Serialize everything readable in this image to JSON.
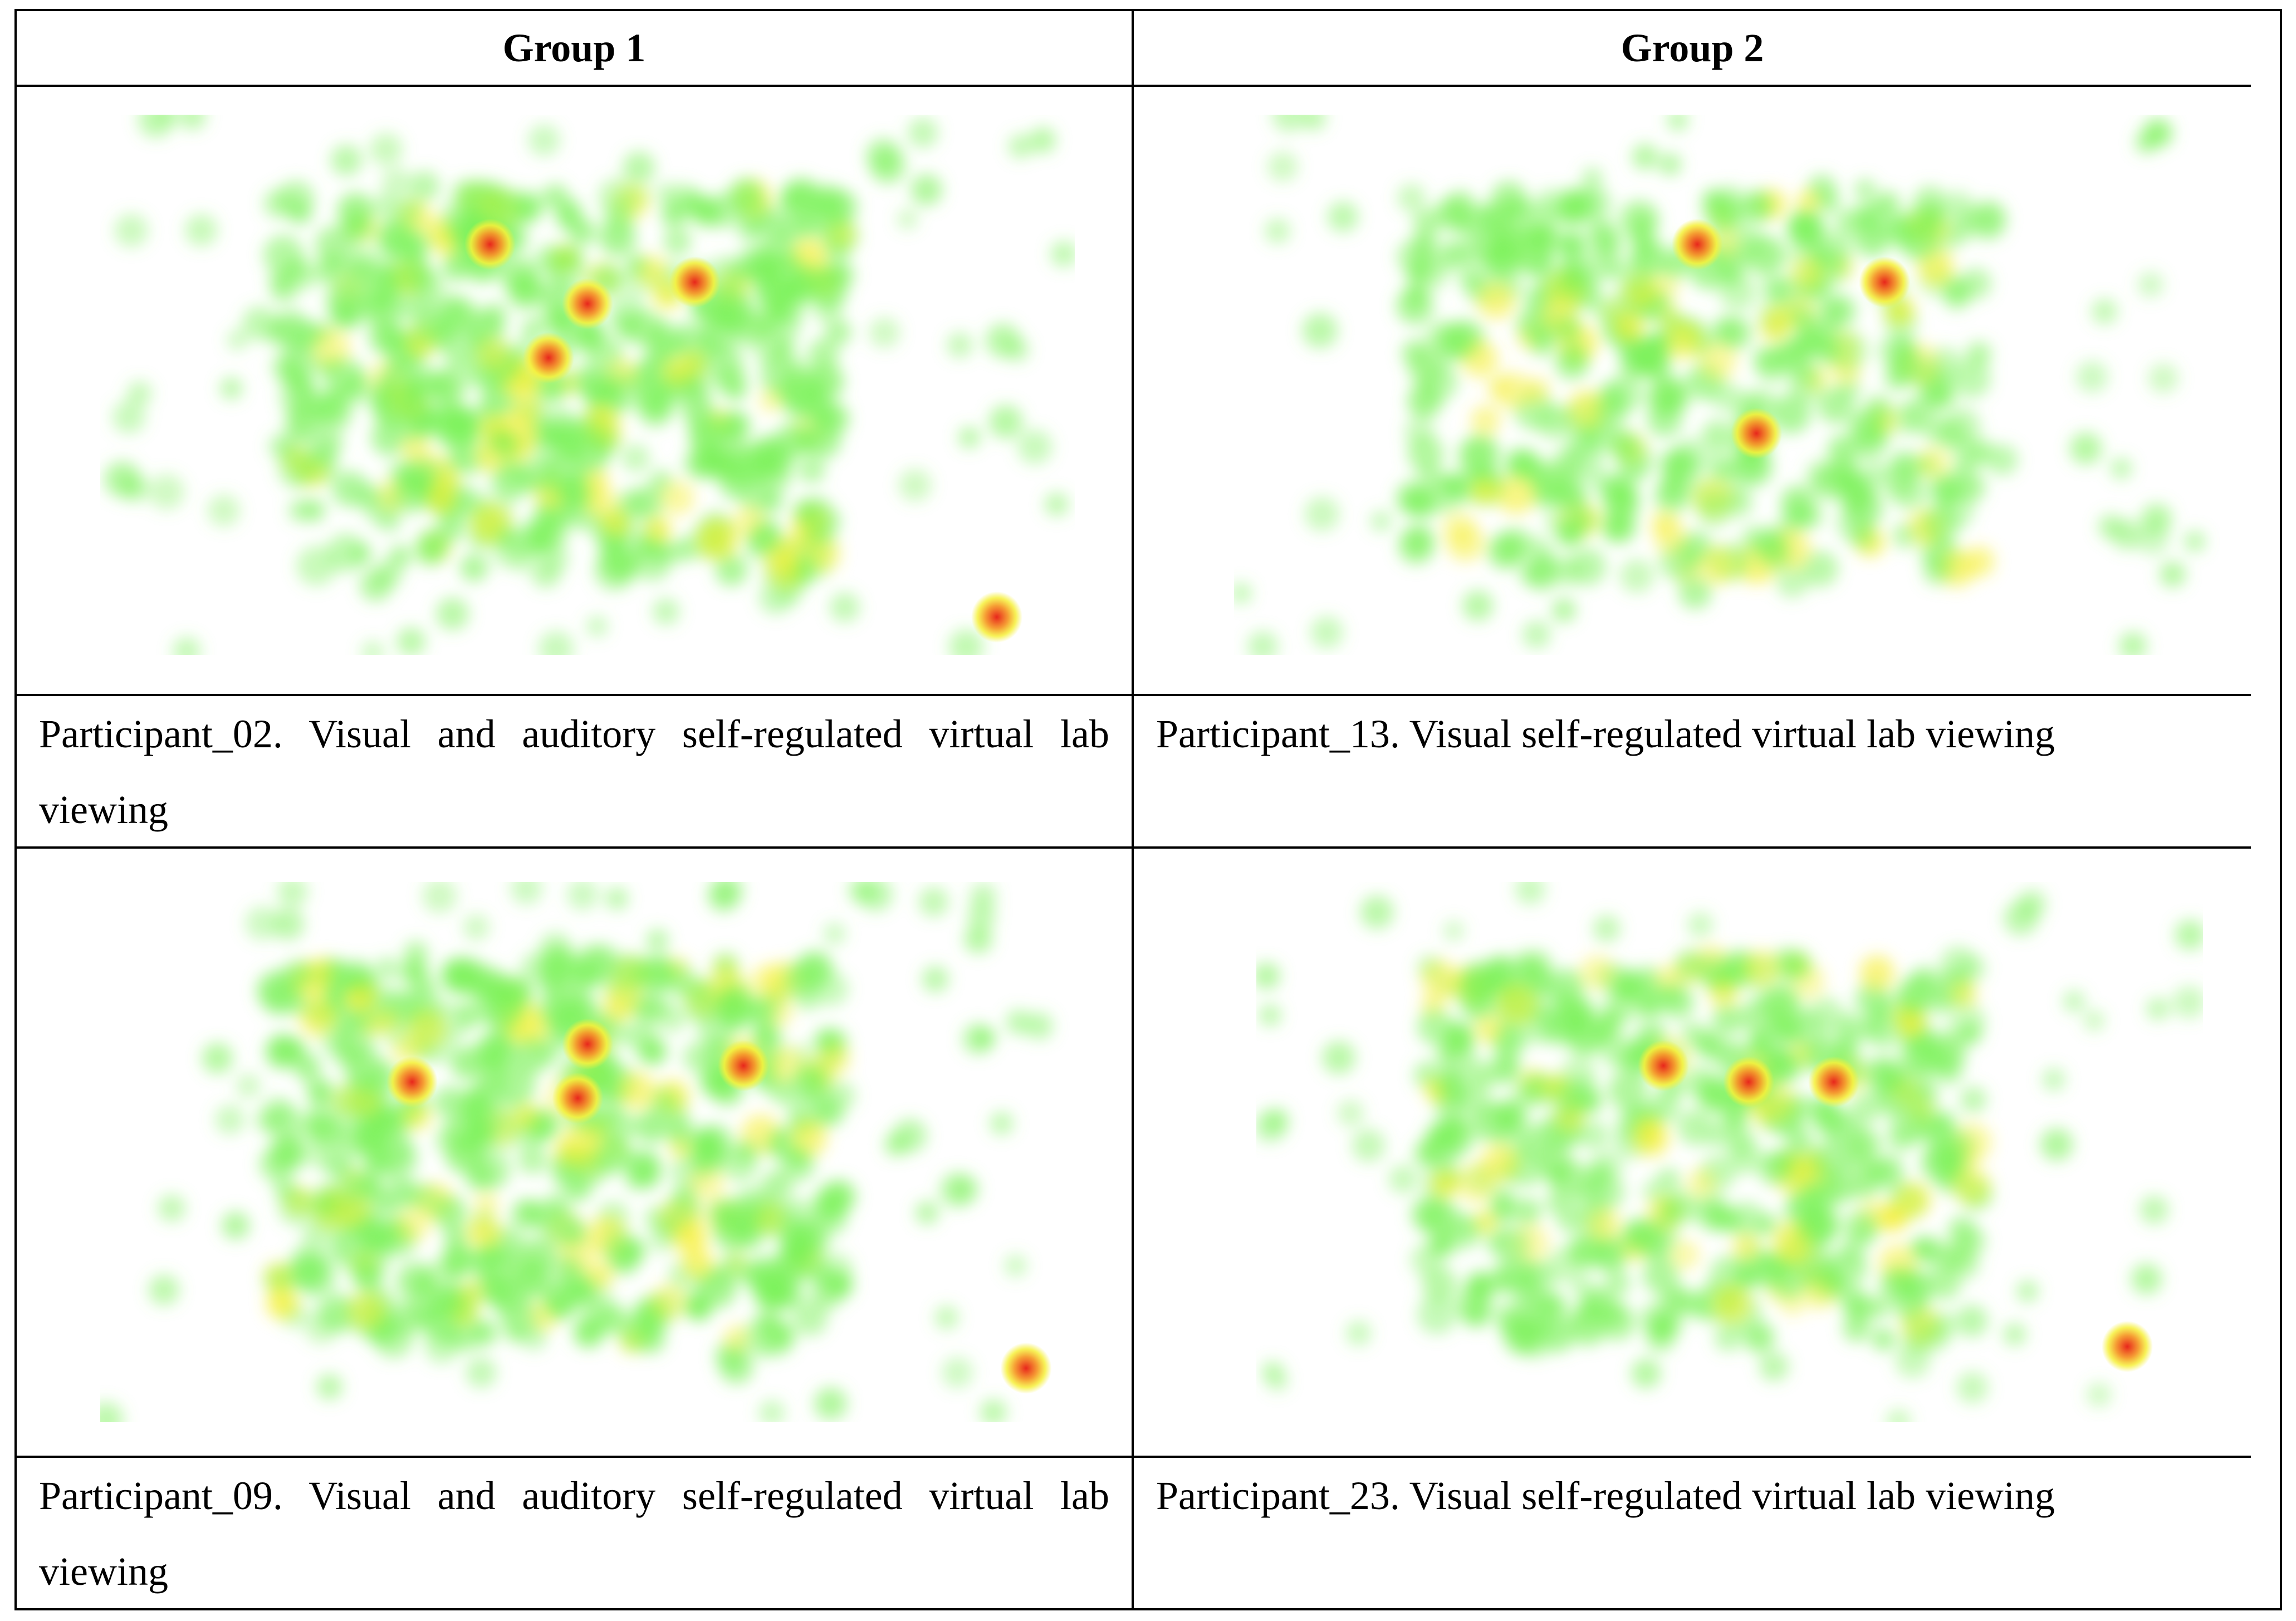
{
  "table": {
    "headers": [
      "Group 1",
      "Group 2"
    ],
    "rows": [
      {
        "captions": [
          "Participant_02. Visual and auditory self-regulated virtual lab viewing",
          "Participant_13. Visual self-regulated virtual lab viewing"
        ]
      },
      {
        "captions": [
          "Participant_09. Visual and auditory self-regulated virtual lab viewing",
          "Participant_23. Visual self-regulated virtual lab viewing"
        ]
      }
    ]
  },
  "heatmap_colors": {
    "low": "#7CF25A",
    "mid": "#F6F03A",
    "high": "#E8261C"
  }
}
